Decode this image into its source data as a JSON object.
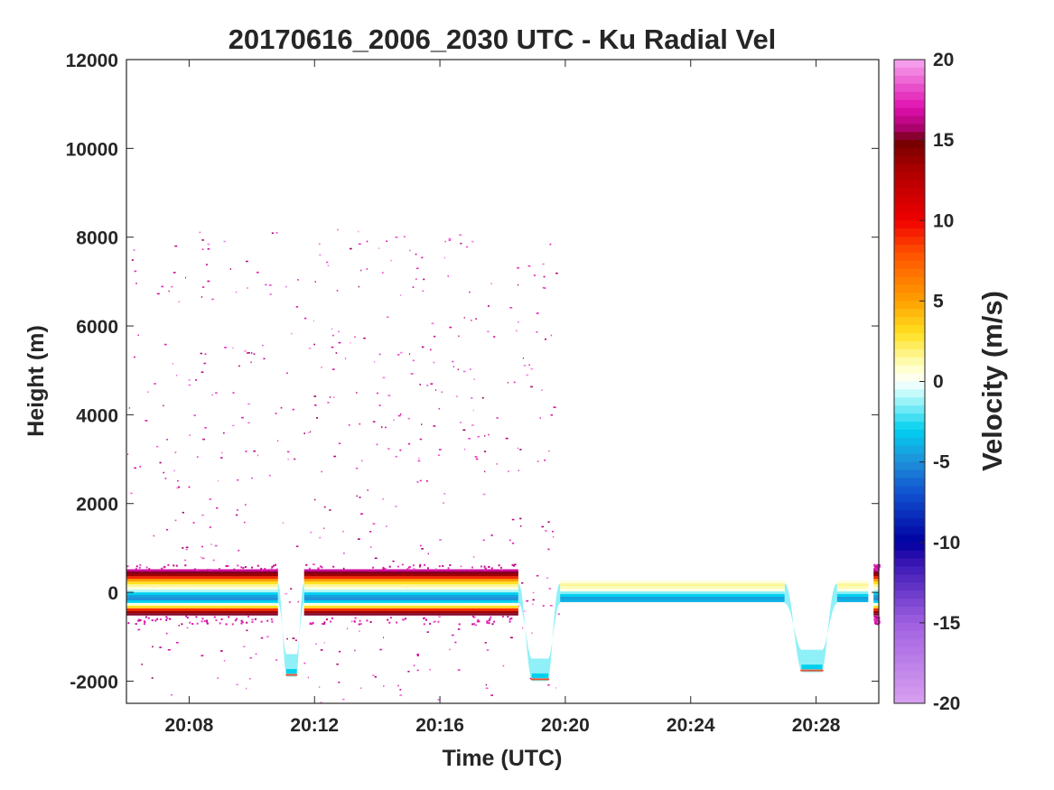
{
  "chart_data": {
    "type": "heatmap",
    "title": "20170616_2006_2030 UTC - Ku Radial Vel",
    "xlabel": "Time (UTC)",
    "ylabel": "Height (m)",
    "xlim": [
      "20:06",
      "20:30"
    ],
    "ylim": [
      -2500,
      12000
    ],
    "xticks": [
      "20:08",
      "20:12",
      "20:16",
      "20:20",
      "20:24",
      "20:28"
    ],
    "yticks": [
      -2000,
      0,
      2000,
      4000,
      6000,
      8000,
      10000,
      12000
    ],
    "grid": false,
    "colorbar": {
      "label": "Velocity (m/s)",
      "limits": [
        -20,
        20
      ],
      "ticks": [
        -20,
        -15,
        -10,
        -5,
        0,
        5,
        10,
        15,
        20
      ],
      "stops": [
        {
          "value": -20,
          "color": "#d8a0f0"
        },
        {
          "value": -15,
          "color": "#a060e0"
        },
        {
          "value": -11,
          "color": "#3010b0"
        },
        {
          "value": -10,
          "color": "#0000a0"
        },
        {
          "value": -7,
          "color": "#1050d0"
        },
        {
          "value": -5,
          "color": "#1e90d8"
        },
        {
          "value": -3,
          "color": "#00d0f0"
        },
        {
          "value": -1,
          "color": "#b0f8f8"
        },
        {
          "value": 0,
          "color": "#ffffff"
        },
        {
          "value": 1,
          "color": "#ffffc0"
        },
        {
          "value": 3,
          "color": "#ffe020"
        },
        {
          "value": 5,
          "color": "#ffa000"
        },
        {
          "value": 8,
          "color": "#ff5000"
        },
        {
          "value": 10,
          "color": "#f00000"
        },
        {
          "value": 13,
          "color": "#b00000"
        },
        {
          "value": 15,
          "color": "#700000"
        },
        {
          "value": 15.5,
          "color": "#a00060"
        },
        {
          "value": 17,
          "color": "#e010b0"
        },
        {
          "value": 20,
          "color": "#f8a8f0"
        }
      ]
    },
    "surface_segments": [
      {
        "start": "20:06",
        "end": "20:10:50",
        "height_m": 0,
        "mirror": true
      },
      {
        "start": "20:11:40",
        "end": "20:18:30",
        "height_m": 0,
        "mirror": true
      },
      {
        "start": "20:19:50",
        "end": "20:27:00",
        "height_m": 0,
        "mirror": false
      },
      {
        "start": "20:28:40",
        "end": "20:29:40",
        "height_m": 0,
        "mirror": false
      },
      {
        "start": "20:29:50",
        "end": "20:30",
        "height_m": 0,
        "mirror": true
      }
    ],
    "dips": [
      {
        "start": "20:10:50",
        "end": "20:11:40",
        "min_height_m": -1900
      },
      {
        "start": "20:18:30",
        "end": "20:19:50",
        "min_height_m": -2000
      },
      {
        "start": "20:27:00",
        "end": "20:28:40",
        "min_height_m": -1800
      }
    ],
    "noise_region": {
      "start": "20:06",
      "end": "20:19:50",
      "max_height_m": 8200
    }
  }
}
